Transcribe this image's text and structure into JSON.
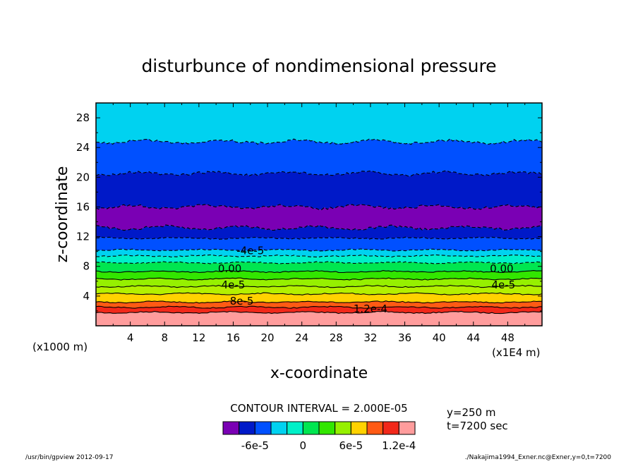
{
  "chart_data": {
    "type": "heatmap",
    "title": "disturbunce of nondimensional pressure",
    "xlabel": "x-coordinate",
    "ylabel": "z-coordinate",
    "x_unit_left": "(x1000 m)",
    "x_unit_right": "(x1E4 m)",
    "xlim": [
      0,
      52
    ],
    "ylim": [
      0,
      30
    ],
    "xticks": [
      "4",
      "8",
      "12",
      "16",
      "20",
      "24",
      "28",
      "32",
      "36",
      "40",
      "44",
      "48"
    ],
    "yticks": [
      "4",
      "8",
      "12",
      "16",
      "20",
      "24",
      "28"
    ],
    "bands": [
      {
        "z0": 0.0,
        "z1": 1.8,
        "color": "#ff9c9c"
      },
      {
        "z0": 1.8,
        "z1": 2.5,
        "color": "#f2281a"
      },
      {
        "z0": 2.5,
        "z1": 3.2,
        "color": "#ff5a14"
      },
      {
        "z0": 3.2,
        "z1": 4.3,
        "color": "#ffd200"
      },
      {
        "z0": 4.3,
        "z1": 5.3,
        "color": "#b4f000"
      },
      {
        "z0": 5.3,
        "z1": 6.3,
        "color": "#96f000"
      },
      {
        "z0": 6.3,
        "z1": 7.3,
        "color": "#32e600"
      },
      {
        "z0": 7.3,
        "z1": 8.5,
        "color": "#00e650"
      },
      {
        "z0": 8.5,
        "z1": 9.4,
        "color": "#00f0c8"
      },
      {
        "z0": 9.4,
        "z1": 10.2,
        "color": "#00d2f0"
      },
      {
        "z0": 10.2,
        "z1": 11.8,
        "color": "#0050ff"
      },
      {
        "z0": 11.8,
        "z1": 13.2,
        "color": "#0019c8"
      },
      {
        "z0": 13.2,
        "z1": 16.0,
        "color": "#7a00b4"
      },
      {
        "z0": 16.0,
        "z1": 20.5,
        "color": "#0019c8"
      },
      {
        "z0": 20.5,
        "z1": 24.8,
        "color": "#0050ff"
      },
      {
        "z0": 24.8,
        "z1": 30.0,
        "color": "#00d2f0"
      }
    ],
    "contour_labels": [
      {
        "text": "-4e-5",
        "x": 18.0,
        "z": 10.1
      },
      {
        "text": "0.00",
        "x": 15.6,
        "z": 7.7
      },
      {
        "text": "0.00",
        "x": 47.3,
        "z": 7.7
      },
      {
        "text": "4e-5",
        "x": 16.0,
        "z": 5.5
      },
      {
        "text": "4e-5",
        "x": 47.5,
        "z": 5.5
      },
      {
        "text": "8e-5",
        "x": 17.0,
        "z": 3.3
      },
      {
        "text": "1.2e-4",
        "x": 32.0,
        "z": 2.3
      }
    ],
    "colorbar": {
      "title": "CONTOUR INTERVAL = 2.000E-05",
      "colors": [
        "#7a00b4",
        "#0019c8",
        "#0050ff",
        "#00d2f0",
        "#00f0c8",
        "#00e650",
        "#32e600",
        "#96f000",
        "#ffd200",
        "#ff5a14",
        "#f2281a",
        "#ff9c9c"
      ],
      "tick_labels": [
        {
          "text": "-6e-5",
          "pos": 2
        },
        {
          "text": "0",
          "pos": 5
        },
        {
          "text": "6e-5",
          "pos": 8
        },
        {
          "text": "1.2e-4",
          "pos": 11
        }
      ]
    },
    "info_y": "y=250 m",
    "info_t": "t=7200 sec",
    "footer_left": "/usr/bin/gpview  2012-09-17",
    "footer_right": "./Nakajima1994_Exner.nc@Exner,y=0,t=7200"
  }
}
